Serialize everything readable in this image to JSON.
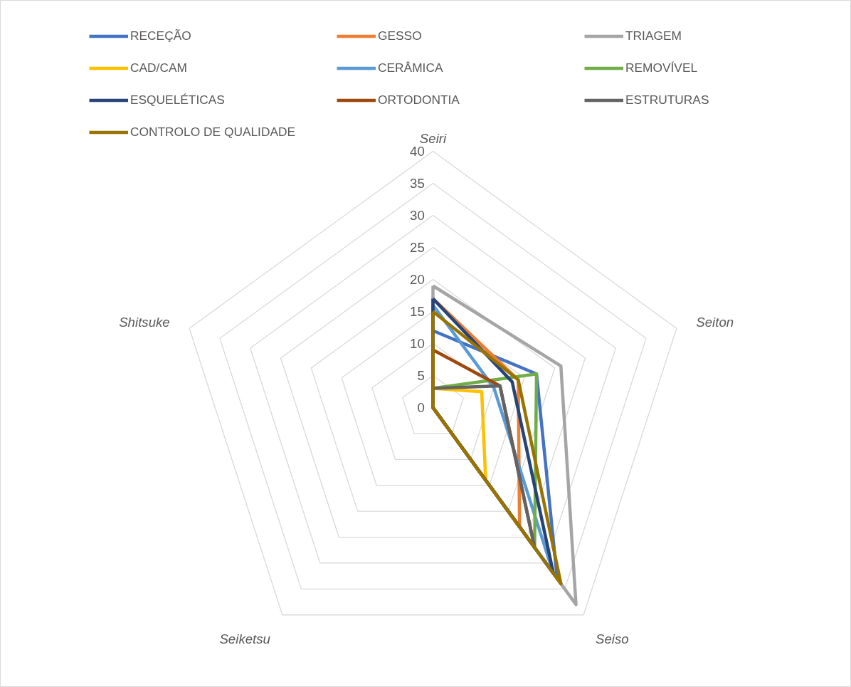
{
  "chart_data": {
    "type": "radar",
    "categories": [
      "Seiri",
      "Seiton",
      "Seiso",
      "Seiketsu",
      "Shitsuke"
    ],
    "ylim": [
      0,
      40
    ],
    "yticks": [
      0,
      5,
      10,
      15,
      20,
      25,
      30,
      35,
      40
    ],
    "grid": true,
    "legend": "top",
    "series": [
      {
        "name": "RECEÇÃO",
        "color": "#4472c4",
        "values": [
          12,
          17,
          33,
          0,
          0
        ]
      },
      {
        "name": "GESSO",
        "color": "#ed7d31",
        "values": [
          17,
          14,
          23,
          0,
          0
        ]
      },
      {
        "name": "TRIAGEM",
        "color": "#a5a5a5",
        "values": [
          19,
          21,
          38,
          0,
          0
        ]
      },
      {
        "name": "CAD/CAM",
        "color": "#ffc000",
        "values": [
          3,
          8,
          14,
          0,
          0
        ]
      },
      {
        "name": "CERÂMICA",
        "color": "#5b9bd5",
        "values": [
          16,
          10,
          32,
          0,
          0
        ]
      },
      {
        "name": "REMOVÍVEL",
        "color": "#70ad47",
        "values": [
          3,
          17,
          27,
          0,
          0
        ]
      },
      {
        "name": "ESQUELÉTICAS",
        "color": "#264478",
        "values": [
          17,
          13,
          32,
          0,
          0
        ]
      },
      {
        "name": "ORTODONTIA",
        "color": "#9e480e",
        "values": [
          9,
          11,
          27,
          0,
          0
        ]
      },
      {
        "name": "ESTRUTURAS",
        "color": "#636363",
        "values": [
          3,
          11,
          27,
          0,
          0
        ]
      },
      {
        "name": "CONTROLO DE QUALIDADE",
        "color": "#997300",
        "values": [
          15,
          14,
          34,
          0,
          0
        ]
      }
    ]
  }
}
